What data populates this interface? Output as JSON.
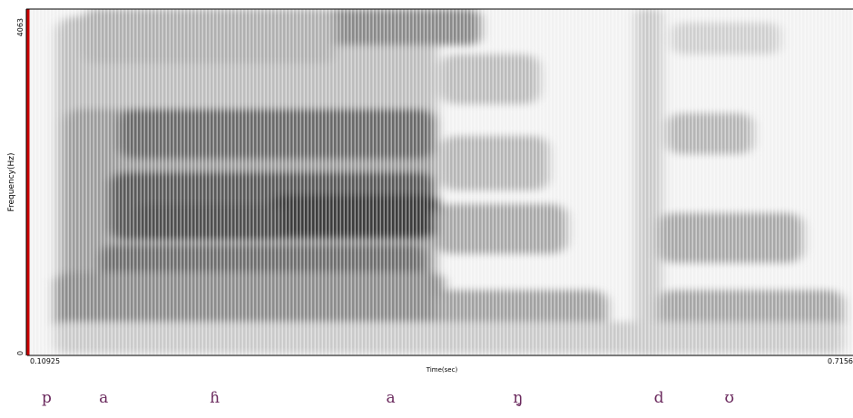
{
  "chart_data": {
    "type": "heatmap",
    "title": "",
    "xlabel": "Time(sec)",
    "ylabel": "Frequency(Hz)",
    "x_tick_labels": [
      "0.10925",
      "0.7156"
    ],
    "y_tick_labels": [
      "0",
      "4063"
    ],
    "xlim": [
      0.10925,
      0.7156
    ],
    "ylim": [
      0,
      4063
    ],
    "grid": false,
    "colormap": "grayscale (dark = high energy)",
    "segments": [
      {
        "label": "p",
        "time": 0.123
      },
      {
        "label": "a",
        "time": 0.165
      },
      {
        "label": "ɦ",
        "time": 0.247
      },
      {
        "label": "a",
        "time": 0.377
      },
      {
        "label": "ŋ̥",
        "time": 0.471
      },
      {
        "label": "d",
        "time": 0.575
      },
      {
        "label": "ʊ",
        "time": 0.627
      }
    ]
  },
  "colors": {
    "axis": "#000000",
    "cursor": "#cc0000",
    "segment_text": "#6b2a5e",
    "background": "#f2f2f2"
  }
}
